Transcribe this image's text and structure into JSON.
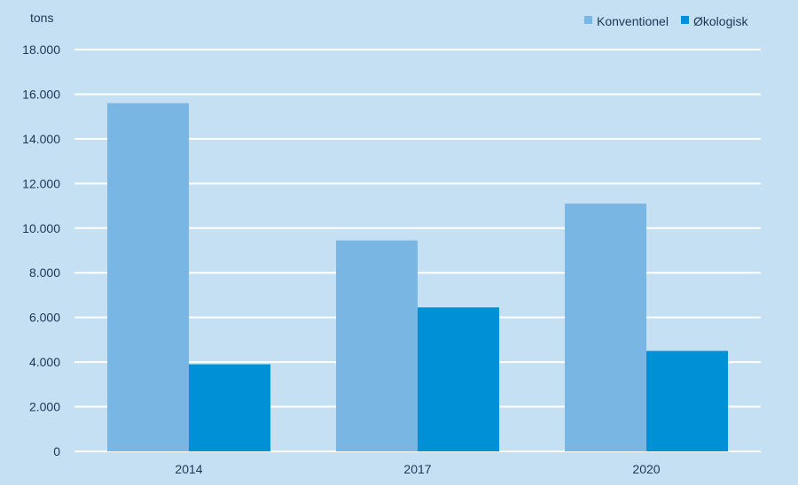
{
  "chart_data": {
    "type": "bar",
    "unit_label": "tons",
    "categories": [
      "2014",
      "2017",
      "2020"
    ],
    "series": [
      {
        "name": "Konventionel",
        "color": "#79b6e4",
        "values": [
          15600,
          9450,
          11100
        ]
      },
      {
        "name": "Økologisk",
        "color": "#0090d6",
        "values": [
          3900,
          6450,
          4500
        ]
      }
    ],
    "ylim": [
      0,
      18000
    ],
    "yticks": [
      0,
      2000,
      4000,
      6000,
      8000,
      10000,
      12000,
      14000,
      16000,
      18000
    ],
    "ytick_labels": [
      "0",
      "2.000",
      "4.000",
      "6.000",
      "8.000",
      "10.000",
      "12.000",
      "14.000",
      "16.000",
      "18.000"
    ],
    "grid": true,
    "legend_position": "top-right",
    "colors": {
      "background": "#c5e0f3",
      "grid": "#ffffff",
      "text": "#1d3557"
    }
  }
}
